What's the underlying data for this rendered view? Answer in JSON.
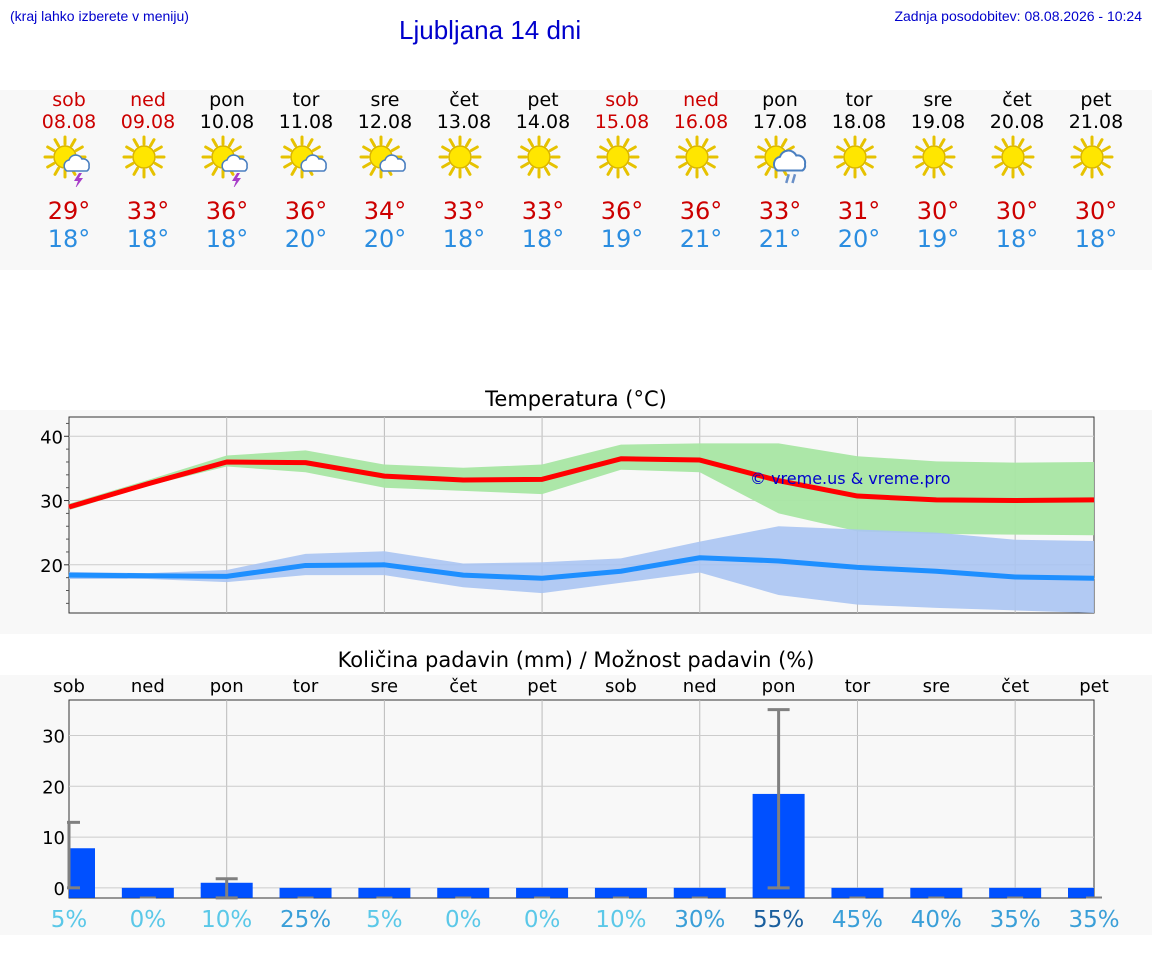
{
  "header": {
    "hint": "(kraj lahko izberete v meniju)",
    "title": "Ljubljana 14 dni",
    "updated": "Zadnja posodobitev: 08.08.2026 - 10:24"
  },
  "days": [
    {
      "name": "sob",
      "date": "08.08",
      "weekend": true,
      "icon": "sun-cloud-thunder-icon",
      "max": "29°",
      "min": "18°"
    },
    {
      "name": "ned",
      "date": "09.08",
      "weekend": true,
      "icon": "sun-icon",
      "max": "33°",
      "min": "18°"
    },
    {
      "name": "pon",
      "date": "10.08",
      "weekend": false,
      "icon": "sun-cloud-thunder-icon",
      "max": "36°",
      "min": "18°"
    },
    {
      "name": "tor",
      "date": "11.08",
      "weekend": false,
      "icon": "sun-cloud-icon",
      "max": "36°",
      "min": "20°"
    },
    {
      "name": "sre",
      "date": "12.08",
      "weekend": false,
      "icon": "sun-cloud-icon",
      "max": "34°",
      "min": "20°"
    },
    {
      "name": "čet",
      "date": "13.08",
      "weekend": false,
      "icon": "sun-icon",
      "max": "33°",
      "min": "18°"
    },
    {
      "name": "pet",
      "date": "14.08",
      "weekend": false,
      "icon": "sun-icon",
      "max": "33°",
      "min": "18°"
    },
    {
      "name": "sob",
      "date": "15.08",
      "weekend": true,
      "icon": "sun-icon",
      "max": "36°",
      "min": "19°"
    },
    {
      "name": "ned",
      "date": "16.08",
      "weekend": true,
      "icon": "sun-icon",
      "max": "36°",
      "min": "21°"
    },
    {
      "name": "pon",
      "date": "17.08",
      "weekend": false,
      "icon": "sun-cloud-rain-icon",
      "max": "33°",
      "min": "21°"
    },
    {
      "name": "tor",
      "date": "18.08",
      "weekend": false,
      "icon": "sun-icon",
      "max": "31°",
      "min": "20°"
    },
    {
      "name": "sre",
      "date": "19.08",
      "weekend": false,
      "icon": "sun-icon",
      "max": "30°",
      "min": "19°"
    },
    {
      "name": "čet",
      "date": "20.08",
      "weekend": false,
      "icon": "sun-icon",
      "max": "30°",
      "min": "18°"
    },
    {
      "name": "pet",
      "date": "21.08",
      "weekend": false,
      "icon": "sun-icon",
      "max": "30°",
      "min": "18°"
    }
  ],
  "colors": {
    "max_line": "#ff0000",
    "max_band": "#a8e6a3",
    "min_line": "#1e8fff",
    "min_band": "#aac4f2",
    "bar": "#0050ff",
    "error_bar": "#808080"
  },
  "chart_data": [
    {
      "type": "line",
      "title": "Temperatura (°C)",
      "xlabel": "",
      "ylabel": "",
      "x": [
        "08.08",
        "09.08",
        "10.08",
        "11.08",
        "12.08",
        "13.08",
        "14.08",
        "15.08",
        "16.08",
        "17.08",
        "18.08",
        "19.08",
        "20.08",
        "21.08"
      ],
      "xlim": [
        0,
        13
      ],
      "ylim": [
        12.5,
        43
      ],
      "yticks": [
        20,
        30,
        40
      ],
      "grid": true,
      "annotation": "© vreme.us & vreme.pro",
      "series": [
        {
          "values": [
            29,
            32.6,
            36,
            35.9,
            33.8,
            33.2,
            33.3,
            36.5,
            36.3,
            33.1,
            30.7,
            30.1,
            30.0,
            30.1
          ],
          "band_low": [
            28.5,
            32.3,
            35.3,
            34.4,
            32,
            31.5,
            31,
            34.8,
            34.4,
            28,
            25.2,
            24.8,
            24.7,
            24.6
          ],
          "band_high": [
            29.5,
            33.2,
            37,
            37.8,
            35.6,
            35.1,
            35.6,
            38.7,
            38.9,
            38.9,
            36.9,
            36.1,
            35.9,
            36
          ]
        },
        {
          "values": [
            18.4,
            18.3,
            18.2,
            19.9,
            20.0,
            18.4,
            17.9,
            19.0,
            21.1,
            20.6,
            19.6,
            19.0,
            18.1,
            17.9
          ],
          "band_low": [
            17.8,
            17.8,
            17.3,
            18.4,
            18.4,
            16.5,
            15.6,
            17.2,
            18.8,
            15.3,
            13.8,
            13.3,
            12.9,
            12.5
          ],
          "band_high": [
            18.9,
            18.7,
            19.2,
            21.7,
            22.1,
            20.2,
            20.4,
            21.0,
            23.6,
            26.0,
            25.5,
            25.0,
            23.9,
            23.7
          ]
        }
      ]
    },
    {
      "type": "bar",
      "title": "Količina padavin (mm) / Možnost padavin (%)",
      "categories": [
        "sob",
        "ned",
        "pon",
        "tor",
        "sre",
        "čet",
        "pet",
        "sob",
        "ned",
        "pon",
        "tor",
        "sre",
        "čet",
        "pet"
      ],
      "values": [
        7.8,
        0,
        1,
        0,
        0,
        0,
        0,
        0,
        0,
        18.5,
        0,
        0,
        0,
        0
      ],
      "err_low": [
        0,
        0,
        0,
        0,
        0,
        0,
        0,
        0,
        0,
        0,
        0,
        0,
        0,
        0
      ],
      "err_high": [
        12.9,
        0,
        1.8,
        0,
        0,
        0,
        0,
        0,
        0,
        35.1,
        0,
        0,
        0,
        0
      ],
      "chance": [
        "5%",
        "0%",
        "10%",
        "25%",
        "5%",
        "0%",
        "0%",
        "10%",
        "30%",
        "55%",
        "45%",
        "40%",
        "35%",
        "35%"
      ],
      "chance_colors": [
        "#5bc8e8",
        "#5bc8e8",
        "#5bc8e8",
        "#3a9fd8",
        "#5bc8e8",
        "#5bc8e8",
        "#5bc8e8",
        "#5bc8e8",
        "#3a9fd8",
        "#1a5f9e",
        "#3a9fd8",
        "#3a9fd8",
        "#3a9fd8",
        "#3a9fd8"
      ],
      "ylim": [
        -2,
        37
      ],
      "yticks": [
        0,
        10,
        20,
        30
      ],
      "grid": true
    }
  ]
}
